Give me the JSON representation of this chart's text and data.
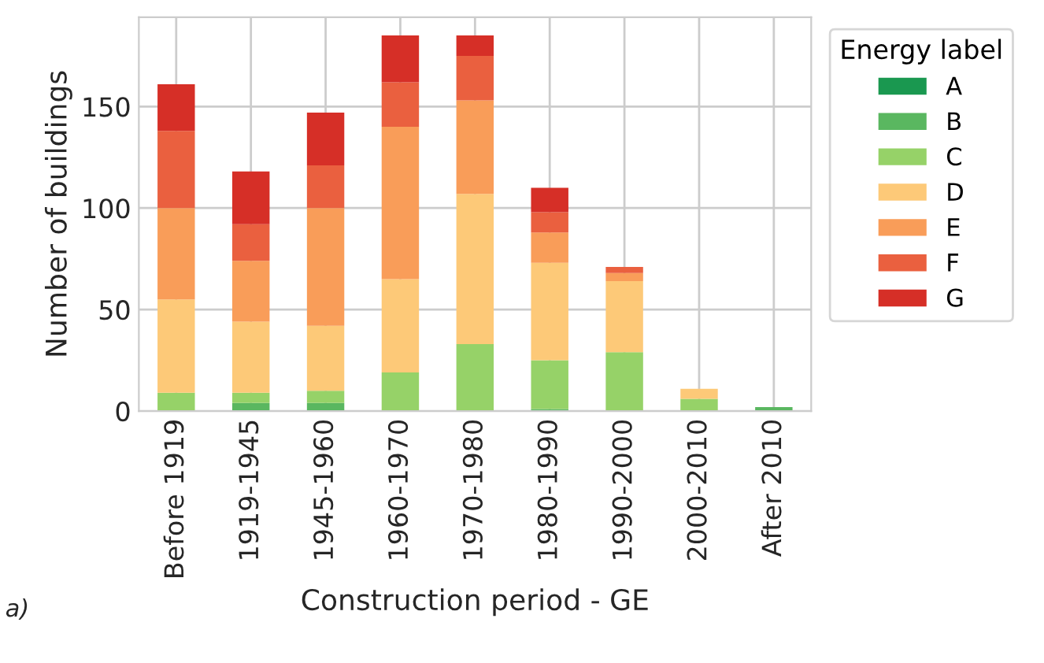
{
  "chart_data": {
    "type": "bar",
    "stacked": true,
    "xlabel": "Construction period - GE",
    "ylabel": "Number of buildings",
    "legend_title": "Energy label",
    "legend": "right",
    "categories": [
      "Before 1919",
      "1919-1945",
      "1945-1960",
      "1960-1970",
      "1970-1980",
      "1980-1990",
      "1990-2000",
      "2000-2010",
      "After 2010"
    ],
    "series": [
      {
        "name": "A",
        "color": "#1a9850",
        "values": [
          0,
          0,
          0,
          0,
          0,
          0,
          0,
          0,
          0
        ]
      },
      {
        "name": "B",
        "color": "#5ab760",
        "values": [
          0,
          4,
          4,
          0,
          0,
          1,
          0,
          0,
          2
        ]
      },
      {
        "name": "C",
        "color": "#96d268",
        "values": [
          9,
          5,
          6,
          19,
          33,
          24,
          29,
          6,
          0
        ]
      },
      {
        "name": "D",
        "color": "#fdc978",
        "values": [
          46,
          35,
          32,
          46,
          74,
          48,
          35,
          5,
          0
        ]
      },
      {
        "name": "E",
        "color": "#f99d59",
        "values": [
          45,
          30,
          58,
          75,
          46,
          15,
          4,
          0,
          0
        ]
      },
      {
        "name": "F",
        "color": "#ea603f",
        "values": [
          38,
          18,
          21,
          22,
          22,
          10,
          3,
          0,
          0
        ]
      },
      {
        "name": "G",
        "color": "#d62f27",
        "values": [
          23,
          26,
          26,
          23,
          10,
          12,
          0,
          0,
          0
        ]
      }
    ],
    "ylim": [
      0,
      194
    ],
    "yticks": [
      0,
      50,
      100,
      150
    ],
    "grid": true,
    "annotations": [
      "a)"
    ]
  }
}
